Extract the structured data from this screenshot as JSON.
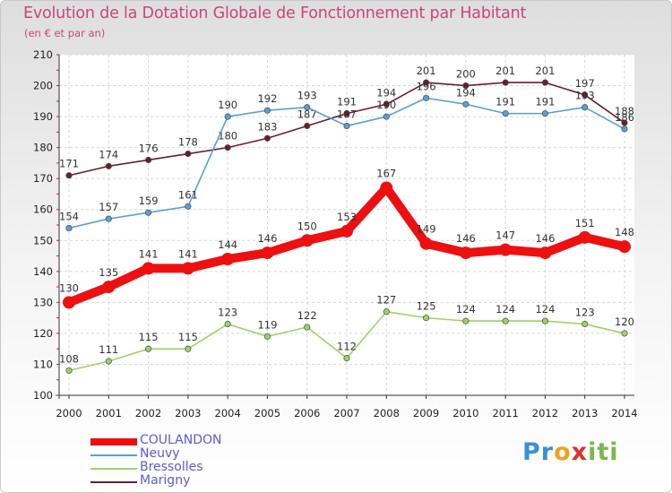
{
  "header": {
    "title": "Evolution de la Dotation Globale de Fonctionnement par Habitant",
    "subtitle": "(en € et par an)"
  },
  "logo": {
    "text_parts": [
      "Pr",
      "o",
      "x",
      "iti"
    ],
    "text": "Proxiti"
  },
  "chart_data": {
    "type": "line",
    "x": [
      2000,
      2001,
      2002,
      2003,
      2004,
      2005,
      2006,
      2007,
      2008,
      2009,
      2010,
      2011,
      2012,
      2013,
      2014
    ],
    "ylim": [
      100,
      210
    ],
    "yticks": [
      100,
      110,
      120,
      130,
      140,
      150,
      160,
      170,
      180,
      190,
      200,
      210
    ],
    "grid": true,
    "legend_position": "bottom-left",
    "series": [
      {
        "name": "Marigny",
        "color": "#6b1c2a",
        "values": [
          171,
          174,
          176,
          178,
          180,
          183,
          187,
          191,
          194,
          201,
          200,
          201,
          201,
          197,
          188
        ]
      },
      {
        "name": "Neuvy",
        "color": "#5a9fd4",
        "values": [
          154,
          157,
          159,
          161,
          190,
          192,
          193,
          187,
          190,
          196,
          194,
          191,
          191,
          193,
          186
        ]
      },
      {
        "name": "Bressolles",
        "color": "#9ad465",
        "values": [
          108,
          111,
          115,
          115,
          123,
          119,
          122,
          112,
          127,
          125,
          124,
          124,
          124,
          123,
          120
        ]
      },
      {
        "name": "COULANDON",
        "color": "#ee1010",
        "values": [
          130,
          135,
          141,
          141,
          144,
          146,
          150,
          153,
          167,
          149,
          146,
          147,
          146,
          151,
          148
        ]
      }
    ],
    "legend_order": [
      "COULANDON",
      "Neuvy",
      "Bressolles",
      "Marigny"
    ]
  }
}
